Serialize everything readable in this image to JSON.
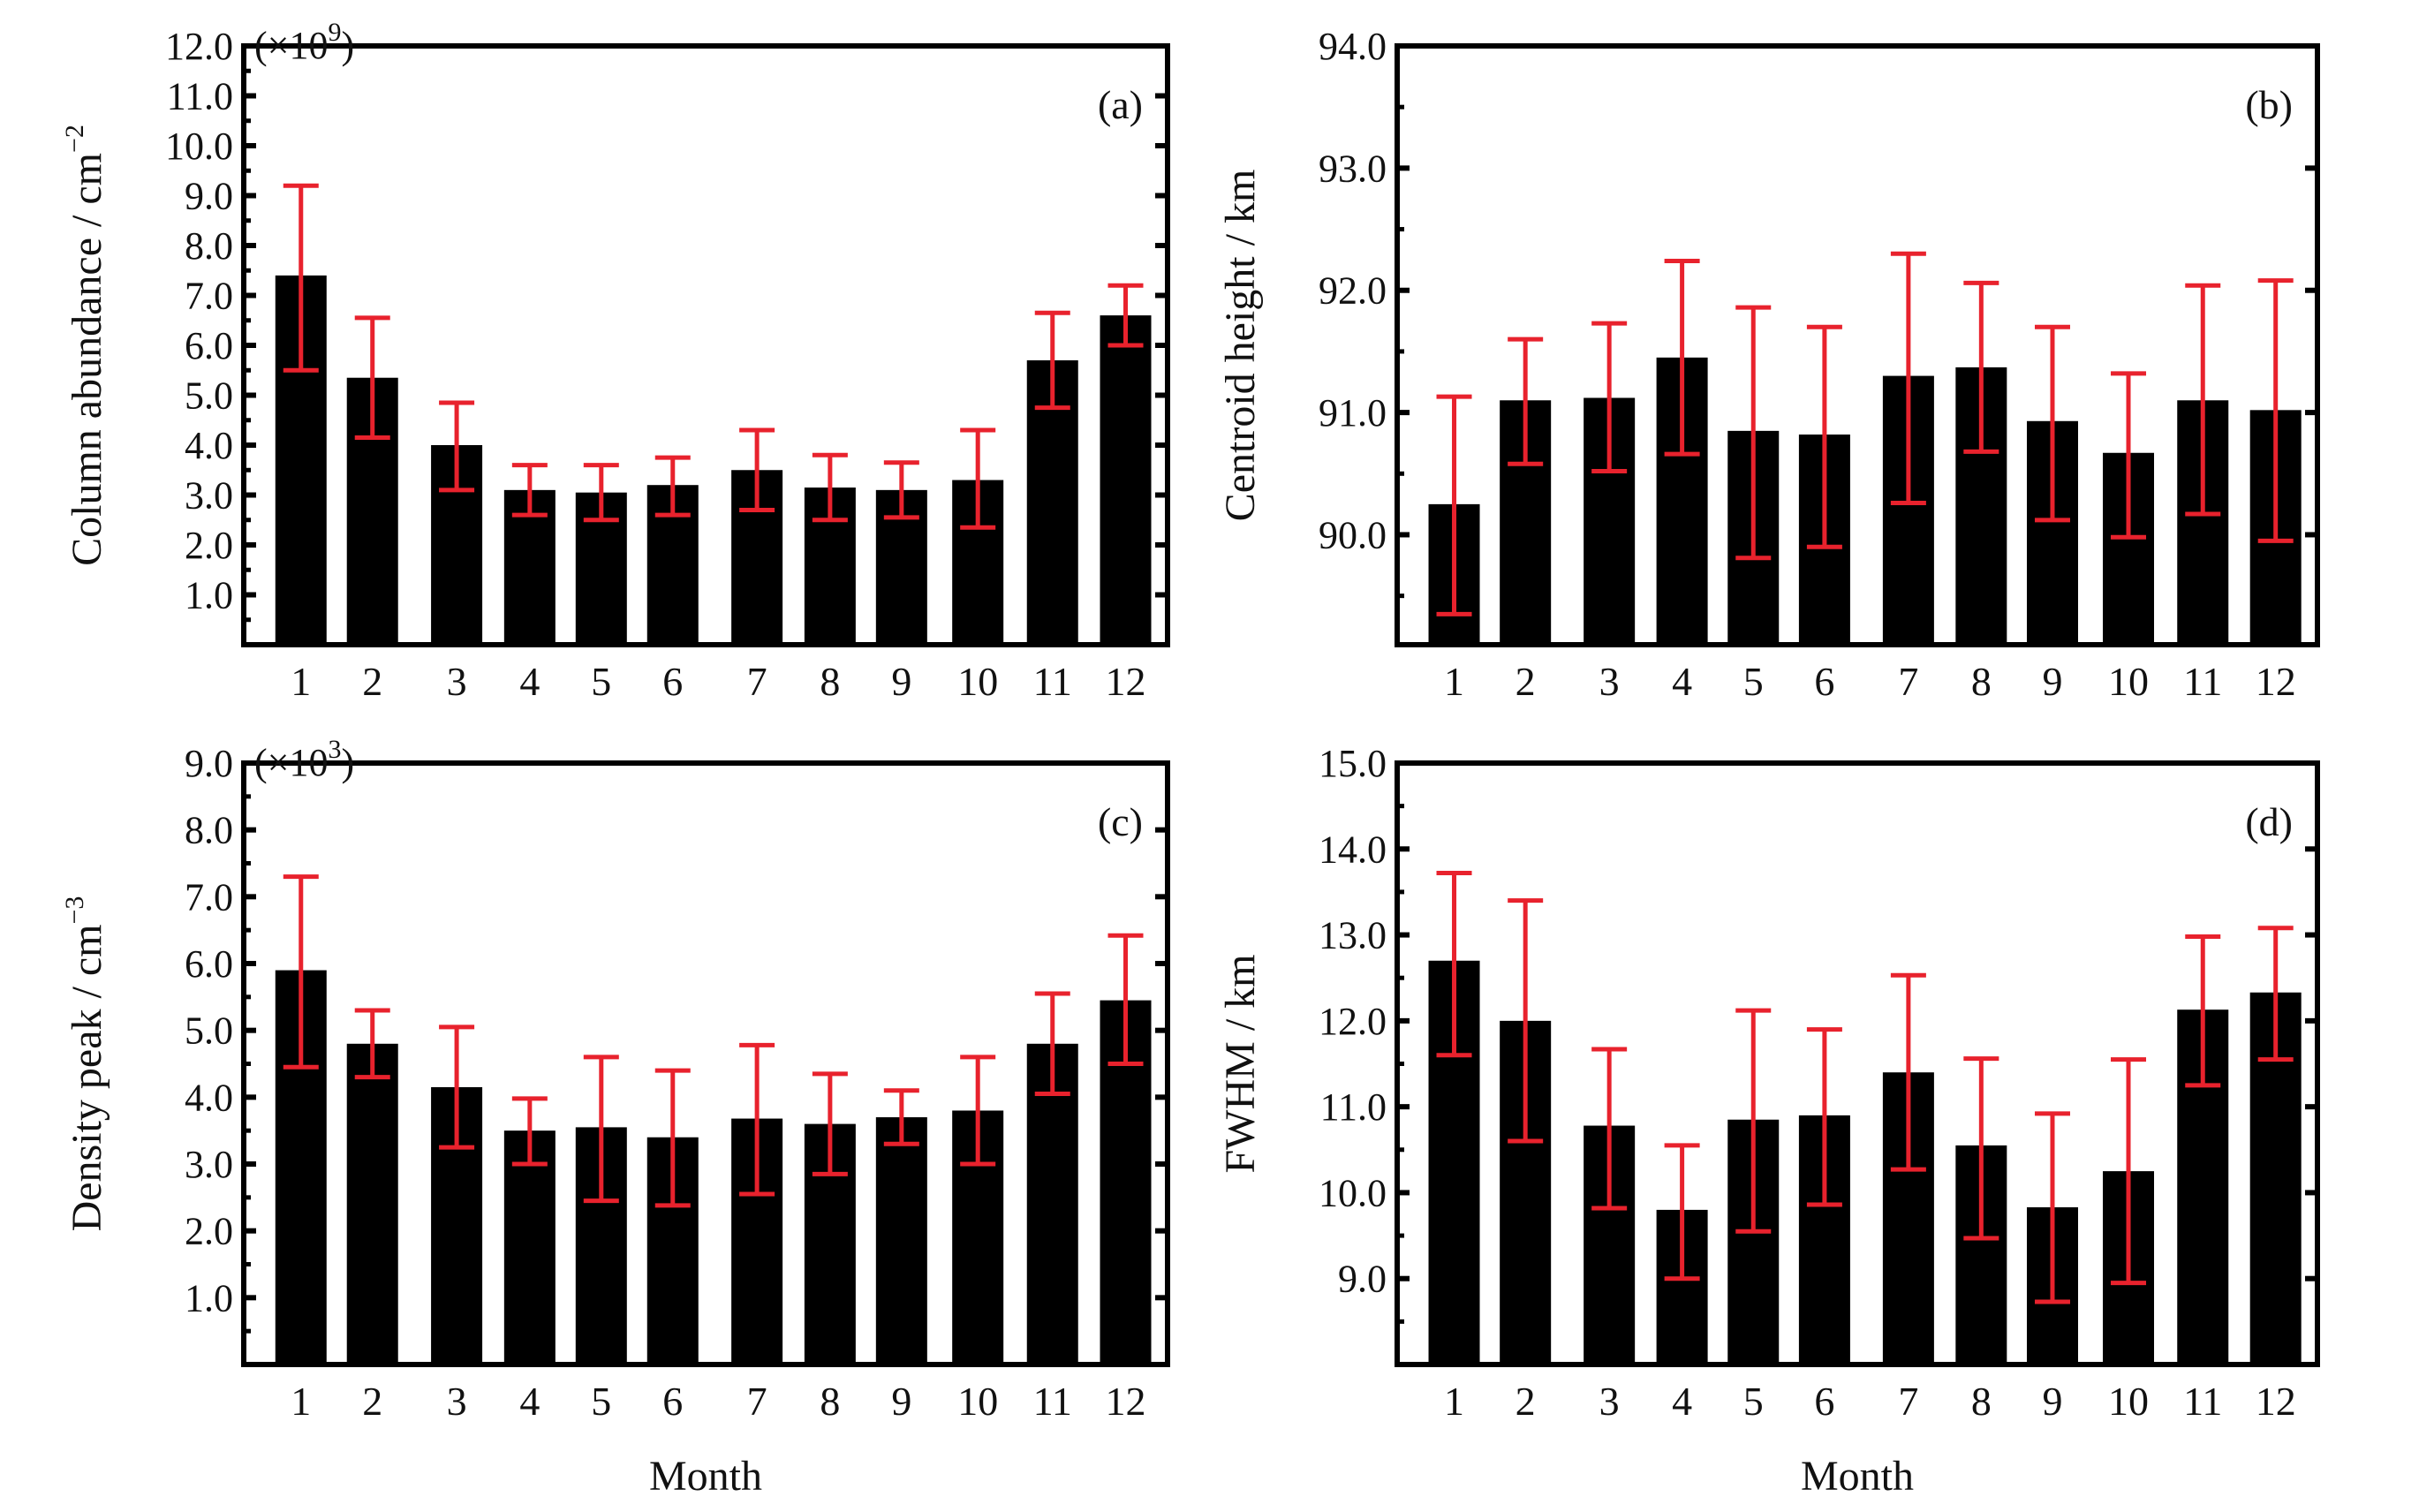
{
  "figure": {
    "xlabel_bottom_left": "Month",
    "xlabel_bottom_right": "Month"
  },
  "colors": {
    "bar": "#000000",
    "errorbar": "#e8222d",
    "axis": "#000000"
  },
  "chart_data": [
    {
      "type": "bar",
      "panel": "(a)",
      "multiplier": "×10",
      "multiplier_exp": "9",
      "ylabel": "Column abundance / cm",
      "ylabel_exp": "−2",
      "xlabel": "",
      "categories": [
        "1",
        "2",
        "3",
        "4",
        "5",
        "6",
        "7",
        "8",
        "9",
        "10",
        "11",
        "12"
      ],
      "values": [
        7.4,
        5.35,
        4.0,
        3.1,
        3.05,
        3.2,
        3.5,
        3.15,
        3.1,
        3.3,
        5.7,
        6.6
      ],
      "err_low": [
        5.5,
        4.15,
        3.1,
        2.6,
        2.5,
        2.6,
        2.7,
        2.5,
        2.55,
        2.35,
        4.75,
        6.0
      ],
      "err_high": [
        9.2,
        6.55,
        4.85,
        3.6,
        3.6,
        3.75,
        4.3,
        3.8,
        3.65,
        4.3,
        6.65,
        7.2
      ],
      "ylim": [
        0,
        12.0
      ],
      "ytick_values": [
        1.0,
        2.0,
        3.0,
        4.0,
        5.0,
        6.0,
        7.0,
        8.0,
        9.0,
        10.0,
        11.0,
        12.0
      ],
      "ytick_labels": [
        "1.0",
        "2.0",
        "3.0",
        "4.0",
        "5.0",
        "6.0",
        "7.0",
        "8.0",
        "9.0",
        "10.0",
        "11.0",
        "12.0"
      ],
      "ytick_top_label": "12.0",
      "grid": false
    },
    {
      "type": "bar",
      "panel": "(b)",
      "ylabel": "Centroid height / km",
      "xlabel": "",
      "categories": [
        "1",
        "2",
        "3",
        "4",
        "5",
        "6",
        "7",
        "8",
        "9",
        "10",
        "11",
        "12"
      ],
      "values": [
        90.25,
        91.1,
        91.12,
        91.45,
        90.85,
        90.82,
        91.3,
        91.37,
        90.93,
        90.67,
        91.1,
        91.02
      ],
      "err_low": [
        89.35,
        90.58,
        90.52,
        90.66,
        89.81,
        89.9,
        90.26,
        90.68,
        90.12,
        89.98,
        90.17,
        89.95
      ],
      "err_high": [
        91.13,
        91.6,
        91.73,
        92.24,
        91.86,
        91.7,
        92.3,
        92.06,
        91.7,
        91.32,
        92.04,
        92.08
      ],
      "ylim": [
        89.1,
        94.0
      ],
      "ytick_values": [
        90.0,
        91.0,
        92.0,
        93.0,
        94.0
      ],
      "ytick_labels": [
        "90.0",
        "91.0",
        "92.0",
        "93.0",
        "94.0"
      ],
      "ytick_top_label": "94.0",
      "grid": false
    },
    {
      "type": "bar",
      "panel": "(c)",
      "multiplier": "×10",
      "multiplier_exp": "3",
      "ylabel": "Density peak / cm",
      "ylabel_exp": "−3",
      "xlabel": "Month",
      "categories": [
        "1",
        "2",
        "3",
        "4",
        "5",
        "6",
        "7",
        "8",
        "9",
        "10",
        "11",
        "12"
      ],
      "values": [
        5.9,
        4.8,
        4.15,
        3.5,
        3.55,
        3.4,
        3.68,
        3.6,
        3.7,
        3.8,
        4.8,
        5.45
      ],
      "err_low": [
        4.45,
        4.3,
        3.25,
        3.0,
        2.45,
        2.38,
        2.55,
        2.85,
        3.3,
        3.0,
        4.05,
        4.5
      ],
      "err_high": [
        7.3,
        5.3,
        5.05,
        3.98,
        4.6,
        4.4,
        4.78,
        4.35,
        4.1,
        4.6,
        5.55,
        6.42
      ],
      "ylim": [
        0,
        9.0
      ],
      "ytick_values": [
        1.0,
        2.0,
        3.0,
        4.0,
        5.0,
        6.0,
        7.0,
        8.0,
        9.0
      ],
      "ytick_labels": [
        "1.0",
        "2.0",
        "3.0",
        "4.0",
        "5.0",
        "6.0",
        "7.0",
        "8.0",
        "9.0"
      ],
      "ytick_top_label": "9.0",
      "grid": false
    },
    {
      "type": "bar",
      "panel": "(d)",
      "ylabel": "FWHM / km",
      "xlabel": "Month",
      "categories": [
        "1",
        "2",
        "3",
        "4",
        "5",
        "6",
        "7",
        "8",
        "9",
        "10",
        "11",
        "12"
      ],
      "values": [
        12.7,
        12.0,
        10.78,
        9.8,
        10.85,
        10.9,
        11.4,
        10.55,
        9.83,
        10.25,
        12.13,
        12.33
      ],
      "err_low": [
        11.6,
        10.6,
        9.82,
        9.0,
        9.55,
        9.86,
        10.27,
        9.47,
        8.73,
        8.95,
        11.25,
        11.55
      ],
      "err_high": [
        13.72,
        13.4,
        11.67,
        10.55,
        12.12,
        11.9,
        12.53,
        11.56,
        10.92,
        11.55,
        12.98,
        13.08
      ],
      "ylim": [
        8.0,
        15.0
      ],
      "ytick_values": [
        9.0,
        10.0,
        11.0,
        12.0,
        13.0,
        14.0,
        15.0
      ],
      "ytick_labels": [
        "9.0",
        "10.0",
        "11.0",
        "12.0",
        "13.0",
        "14.0",
        "15.0"
      ],
      "ytick_top_label": "15.0",
      "grid": false
    }
  ]
}
